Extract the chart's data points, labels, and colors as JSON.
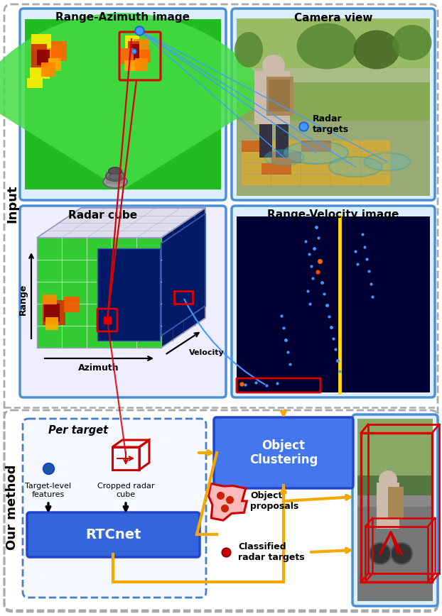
{
  "fig_width": 6.22,
  "fig_height": 8.68,
  "dpi": 100,
  "bg_color": "#ffffff",
  "titles": {
    "range_azimuth": "Range-Azimuth image",
    "camera_view": "Camera view",
    "radar_cube": "Radar cube",
    "range_velocity": "Range-Velocity image",
    "per_target": "Per target",
    "rtcnet": "RTCnet",
    "object_clustering": "Object\nClustering",
    "object_proposals": "Object\nproposals",
    "classified_targets": "Classified\nradar targets",
    "target_level": "Target-level\nfeatures",
    "cropped_radar": "Cropped radar\ncube",
    "radar_targets": "Radar\ntargets",
    "input_label": "Input",
    "our_method_label": "Our method"
  },
  "colors": {
    "panel_border": "#4a90d9",
    "outer_dash": "#aaaaaa",
    "section_dash": "#aaaaaa",
    "blue_dash": "#4a7fc1",
    "yellow": "#f5a800",
    "red": "#dd0000",
    "dark_red": "#880000",
    "green_radar": "#33cc33",
    "dark_blue_cube": "#001a66",
    "rv_bg": "#000033",
    "cube_bg": "#eeeeff",
    "white": "#ffffff"
  }
}
